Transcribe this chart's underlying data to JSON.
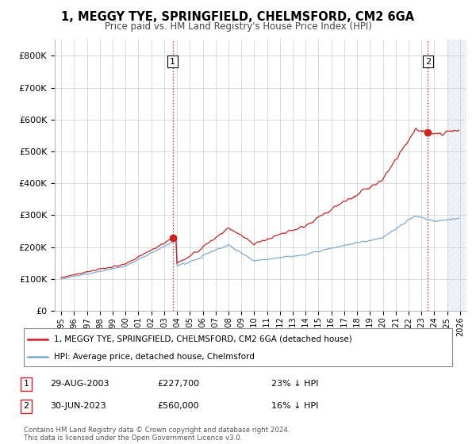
{
  "title": "1, MEGGY TYE, SPRINGFIELD, CHELMSFORD, CM2 6GA",
  "subtitle": "Price paid vs. HM Land Registry's House Price Index (HPI)",
  "hpi_color": "#7aaad4",
  "price_color": "#cc2222",
  "vline_color": "#cc2222",
  "transaction1_year": 2003.66,
  "transaction1_price": 227700,
  "transaction1_label": "1",
  "transaction2_year": 2023.5,
  "transaction2_price": 560000,
  "transaction2_label": "2",
  "ylim_max": 850000,
  "legend_label_price": "1, MEGGY TYE, SPRINGFIELD, CHELMSFORD, CM2 6GA (detached house)",
  "legend_label_hpi": "HPI: Average price, detached house, Chelmsford",
  "table_rows": [
    {
      "label": "1",
      "date": "29-AUG-2003",
      "price": "£227,700",
      "hpi": "23% ↓ HPI"
    },
    {
      "label": "2",
      "date": "30-JUN-2023",
      "price": "£560,000",
      "hpi": "16% ↓ HPI"
    }
  ],
  "footer": "Contains HM Land Registry data © Crown copyright and database right 2024.\nThis data is licensed under the Open Government Licence v3.0.",
  "background_color": "#ffffff",
  "grid_color": "#cccccc",
  "fill_color": "#ccddf0"
}
